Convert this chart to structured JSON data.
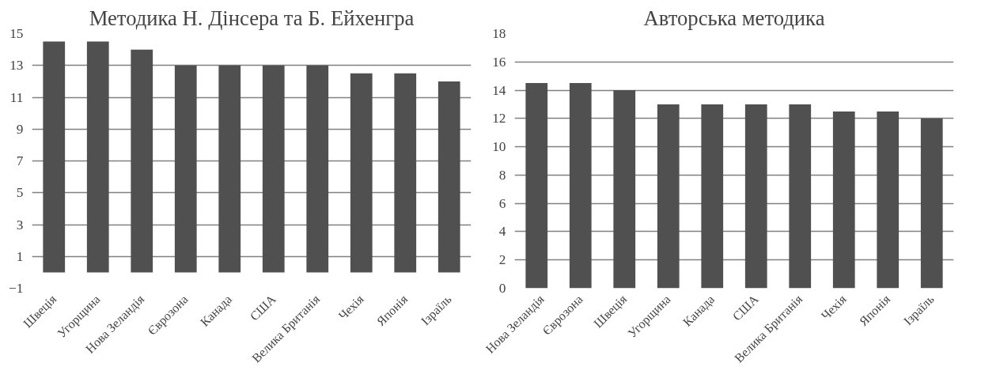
{
  "chart_data": [
    {
      "type": "bar",
      "title": "Методика Н. Дінсера та Б. Ейхенгра",
      "categories": [
        "Швеція",
        "Угорщина",
        "Нова Зеландія",
        "Єврозона",
        "Канада",
        "США",
        "Велика Британія",
        "Чехія",
        "Японія",
        "Ізраїль"
      ],
      "values": [
        14.5,
        14.5,
        14,
        13,
        13,
        13,
        13,
        12.5,
        12.5,
        12
      ],
      "color": "#505050",
      "ylim": [
        -1,
        15
      ],
      "yticks": [
        -1,
        1,
        3,
        5,
        7,
        9,
        11,
        13,
        15
      ],
      "grid": "y"
    },
    {
      "type": "bar",
      "title": "Авторська методика",
      "categories": [
        "Нова Зеландія",
        "Єврозона",
        "Швеція",
        "Угорщина",
        "Канада",
        "США",
        "Велика Британія",
        "Чехія",
        "Японія",
        "Ізраїль"
      ],
      "values": [
        14.5,
        14.5,
        14,
        13,
        13,
        13,
        13,
        12.5,
        12.5,
        12
      ],
      "color": "#505050",
      "ylim": [
        0,
        18
      ],
      "yticks": [
        0,
        2,
        4,
        6,
        8,
        10,
        12,
        14,
        16,
        18
      ],
      "grid": "y"
    }
  ]
}
